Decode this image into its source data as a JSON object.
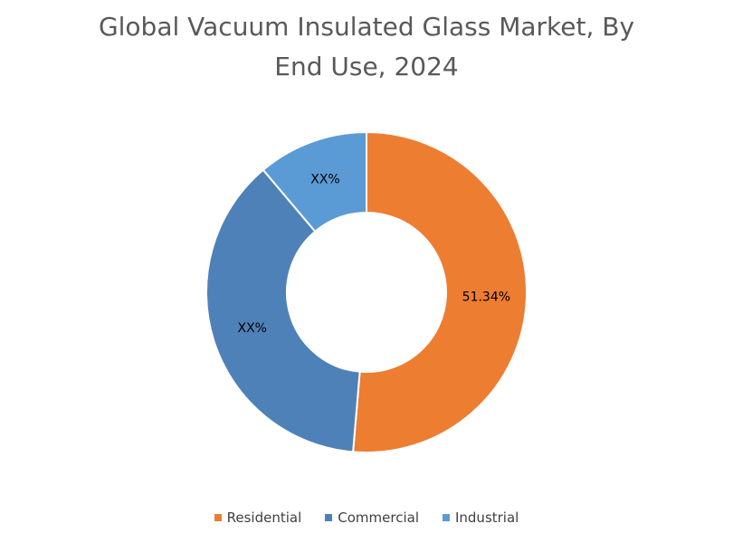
{
  "chart_data": {
    "type": "donut",
    "title": "Global Vacuum Insulated Glass Market, By End Use, 2024",
    "categories": [
      "Residential",
      "Commercial",
      "Industrial"
    ],
    "values": [
      51.34,
      37.5,
      11.16
    ],
    "value_labels": [
      "51.34%",
      "XX%",
      "XX%"
    ],
    "colors": [
      "#ed7d31",
      "#4e81b8",
      "#5b9bd5"
    ],
    "legend": "bottom"
  }
}
